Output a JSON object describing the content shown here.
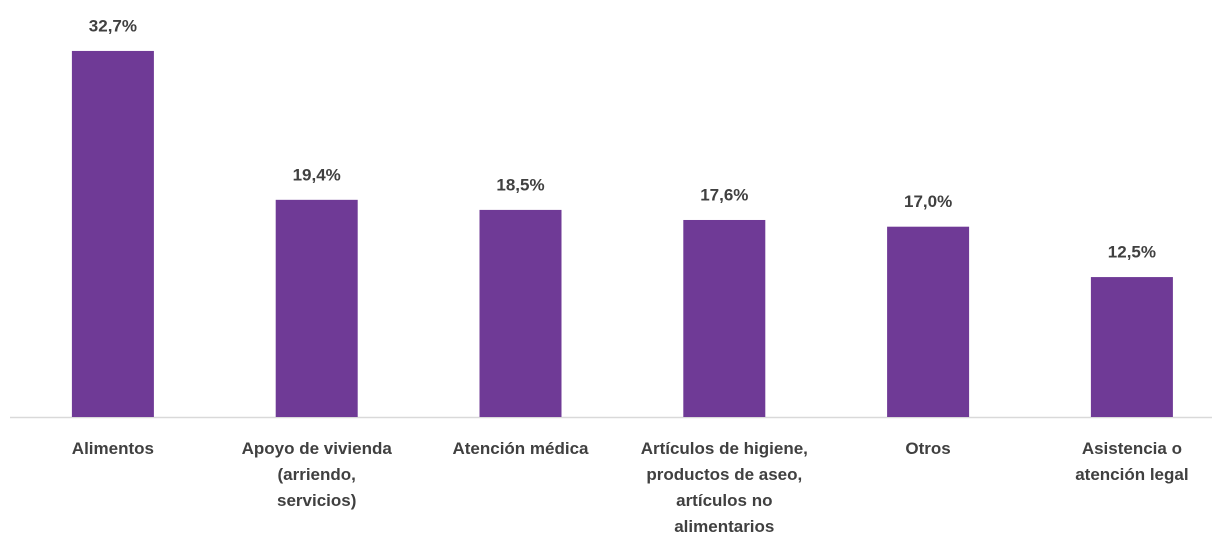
{
  "chart_data": {
    "type": "bar",
    "categories": [
      "Alimentos",
      "Apoyo de vivienda\n(arriendo,\nservicios)",
      "Atención médica",
      "Artículos de higiene,\nproductos de aseo,\nartículos no\nalimentarios",
      "Otros",
      "Asistencia o\natención legal"
    ],
    "values": [
      32.7,
      19.4,
      18.5,
      17.6,
      17.0,
      12.5
    ],
    "value_labels": [
      "32,7%",
      "19,4%",
      "18,5%",
      "17,6%",
      "17,0%",
      "12,5%"
    ],
    "color": "#6f3a96",
    "ylim": [
      0,
      36
    ]
  }
}
